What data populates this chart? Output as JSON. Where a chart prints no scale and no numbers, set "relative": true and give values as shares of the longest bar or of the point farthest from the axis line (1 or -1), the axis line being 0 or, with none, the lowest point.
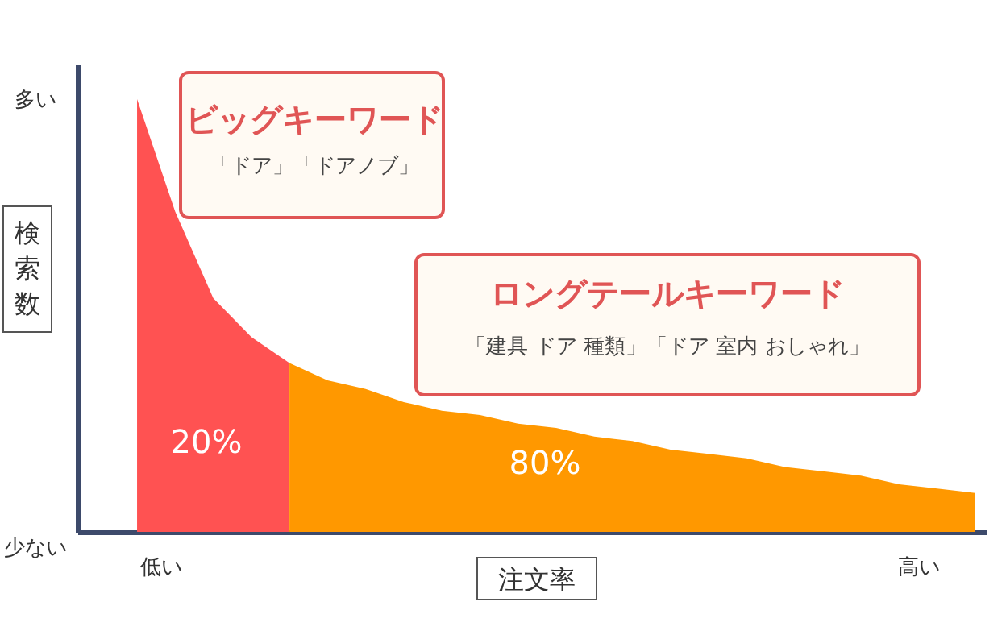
{
  "chart_data": {
    "type": "area",
    "relative": true,
    "xlabel": "注文率",
    "ylabel": "検索数",
    "categories": [
      null,
      null,
      null,
      null,
      null,
      null,
      null,
      null,
      null,
      null,
      null,
      null,
      null,
      null,
      null,
      null,
      null,
      null,
      null,
      null,
      null,
      null,
      null
    ],
    "series": [
      {
        "color": "#ff5252",
        "values": [
          1,
          0.74,
          0.54,
          0.45,
          0.39,
          null,
          null,
          null,
          null,
          null,
          null,
          null,
          null,
          null,
          null,
          null,
          null,
          null,
          null,
          null,
          null,
          null,
          null
        ]
      },
      {
        "color": "#ff9800",
        "values": [
          null,
          null,
          null,
          null,
          0.39,
          0.35,
          0.33,
          0.3,
          0.28,
          0.27,
          0.25,
          0.24,
          0.22,
          0.21,
          0.19,
          0.18,
          0.17,
          0.15,
          0.14,
          0.13,
          0.11,
          0.1,
          0.09
        ]
      }
    ],
    "annotations": [
      "ビッグキーワード",
      "「ドア」「ドアノブ」",
      "ロングテールキーワード",
      "「建具 ドア 種類」「ドア 室内 おしゃれ」",
      "20%",
      "80%",
      "多い",
      "少ない",
      "低い",
      "高い"
    ]
  }
}
